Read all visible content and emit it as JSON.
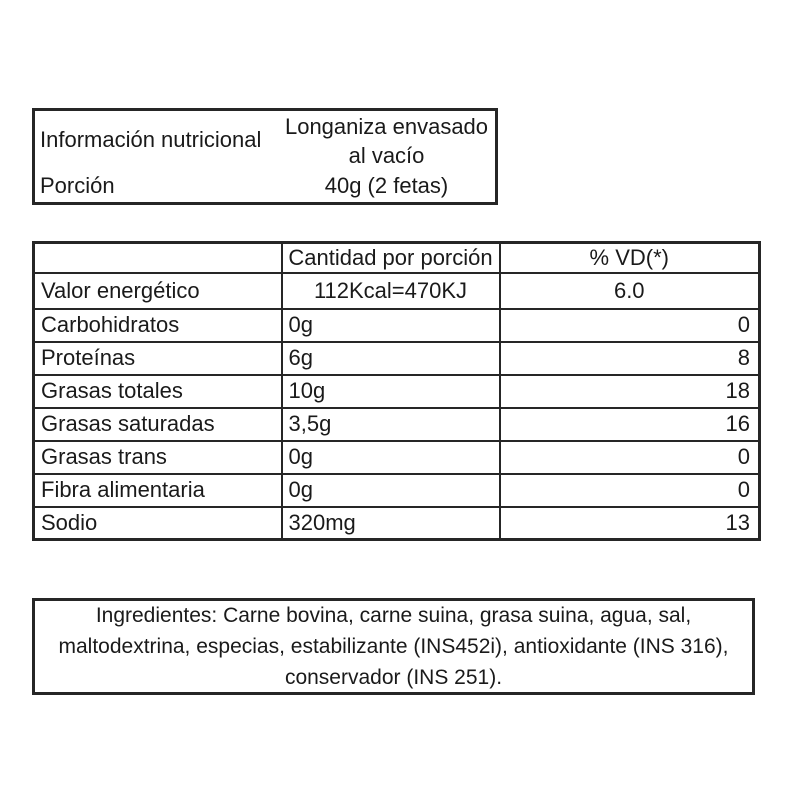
{
  "header_box": {
    "title": "Información nutricional",
    "product_name": "Longaniza envasado al vacío",
    "portion_label": "Porción",
    "portion_value": "40g (2 fetas)"
  },
  "nutrition_table": {
    "columns": [
      "",
      "Cantidad por porción",
      "% VD(*)"
    ],
    "rows": [
      {
        "name": "Valor energético",
        "amount": "112Kcal=470KJ",
        "vd": "6.0"
      },
      {
        "name": "Carbohidratos",
        "amount": "0g",
        "vd": "0"
      },
      {
        "name": "Proteínas",
        "amount": "6g",
        "vd": "8"
      },
      {
        "name": "Grasas totales",
        "amount": "10g",
        "vd": "18"
      },
      {
        "name": "Grasas saturadas",
        "amount": "3,5g",
        "vd": "16"
      },
      {
        "name": "Grasas trans",
        "amount": "0g",
        "vd": "0"
      },
      {
        "name": "Fibra alimentaria",
        "amount": "0g",
        "vd": "0"
      },
      {
        "name": "Sodio",
        "amount": "320mg",
        "vd": "13"
      }
    ]
  },
  "ingredients": {
    "text": "Ingredientes: Carne bovina, carne suina, grasa suina, agua, sal, maltodextrina, especias, estabilizante (INS452i), antioxidante (INS 316), conservador (INS 251)."
  },
  "colors": {
    "border": "#262626",
    "text": "#1a1a1a",
    "background": "#ffffff"
  }
}
